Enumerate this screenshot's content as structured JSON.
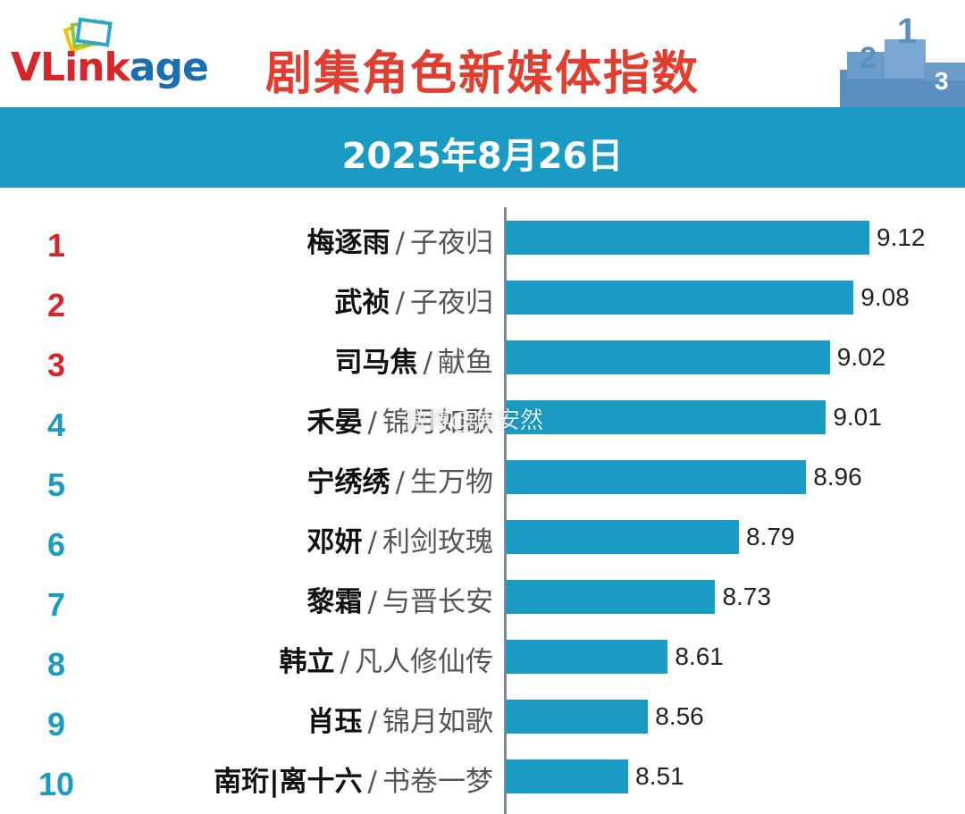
{
  "header": {
    "logo_prefix": "VLink",
    "logo_suffix": "age",
    "title": "剧集角色新媒体指数",
    "date": "2025年8月26日"
  },
  "watermark": "微博@焦安然",
  "colors": {
    "bar": "#1a9bc3",
    "rank_top": "#d7262b",
    "rank_rest": "#1a9bc3",
    "title": "#e23d2e"
  },
  "chart_data": {
    "type": "bar",
    "orientation": "horizontal",
    "title": "剧集角色新媒体指数",
    "subtitle": "2025年8月26日",
    "xlim": [
      0,
      9.12
    ],
    "rows": [
      {
        "rank": "1",
        "name": "梅逐雨",
        "show": "子夜归",
        "value": 9.12,
        "label": "9.12"
      },
      {
        "rank": "2",
        "name": "武祯",
        "show": "子夜归",
        "value": 9.08,
        "label": "9.08"
      },
      {
        "rank": "3",
        "name": "司马焦",
        "show": "献鱼",
        "value": 9.02,
        "label": "9.02"
      },
      {
        "rank": "4",
        "name": "禾晏",
        "show": "锦月如歌",
        "value": 9.01,
        "label": "9.01"
      },
      {
        "rank": "5",
        "name": "宁绣绣",
        "show": "生万物",
        "value": 8.96,
        "label": "8.96"
      },
      {
        "rank": "6",
        "name": "邓妍",
        "show": "利剑玫瑰",
        "value": 8.79,
        "label": "8.79"
      },
      {
        "rank": "7",
        "name": "黎霜",
        "show": "与晋长安",
        "value": 8.73,
        "label": "8.73"
      },
      {
        "rank": "8",
        "name": "韩立",
        "show": "凡人修仙传",
        "value": 8.61,
        "label": "8.61"
      },
      {
        "rank": "9",
        "name": "肖珏",
        "show": "锦月如歌",
        "value": 8.56,
        "label": "8.56"
      },
      {
        "rank": "10",
        "name": "南珩|离十六",
        "show": "书卷一梦",
        "value": 8.51,
        "label": "8.51"
      }
    ]
  }
}
